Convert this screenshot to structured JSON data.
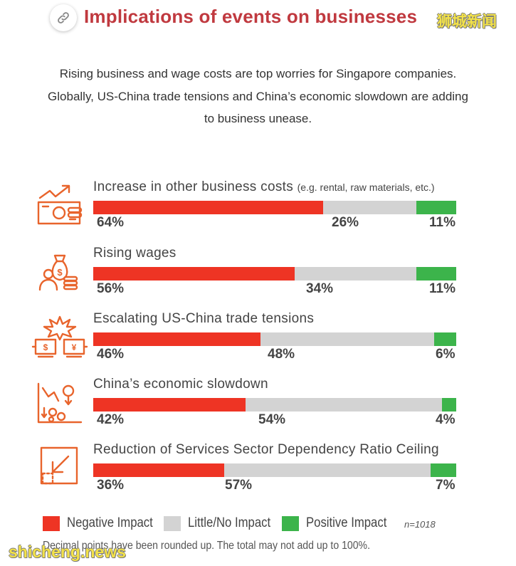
{
  "header": {
    "title": "Implications of events on businesses",
    "watermark": "狮城新闻"
  },
  "subtitle_lines": [
    "Rising business and wage costs are top worries for Singapore companies.",
    "Globally, US-China trade tensions and China’s economic slowdown are adding",
    "to business unease."
  ],
  "icons": [
    "link-icon",
    "rising-costs-icon",
    "money-bag-wages-icon",
    "trade-clash-icon",
    "economic-slowdown-icon",
    "ratio-reduction-icon"
  ],
  "colors": {
    "title": "#c0393f",
    "negative": "#ee3424",
    "neutral": "#d3d3d3",
    "positive": "#3cb44b",
    "icon": "#e8642c",
    "watermark": "#f3e24a"
  },
  "chart_data": {
    "type": "bar",
    "orientation": "horizontal-stacked-100",
    "categories": [
      "Increase in other business costs",
      "Rising wages",
      "Escalating US-China trade tensions",
      "China’s economic slowdown",
      "Reduction of Services Sector Dependency Ratio Ceiling"
    ],
    "category_notes": [
      "(e.g. rental, raw materials, etc.)",
      "",
      "",
      "",
      ""
    ],
    "series": [
      {
        "name": "Negative Impact",
        "values": [
          64,
          56,
          46,
          42,
          36
        ]
      },
      {
        "name": "Little/No Impact",
        "values": [
          26,
          34,
          48,
          54,
          57
        ]
      },
      {
        "name": "Positive Impact",
        "values": [
          11,
          11,
          6,
          4,
          7
        ]
      }
    ],
    "value_suffix": "%",
    "legend_position": "bottom-left",
    "sample_size": "n=1018",
    "footnote": "Decimal points have been rounded up. The total may not add up to 100%."
  },
  "watermark_bottom": "shicheng.news"
}
